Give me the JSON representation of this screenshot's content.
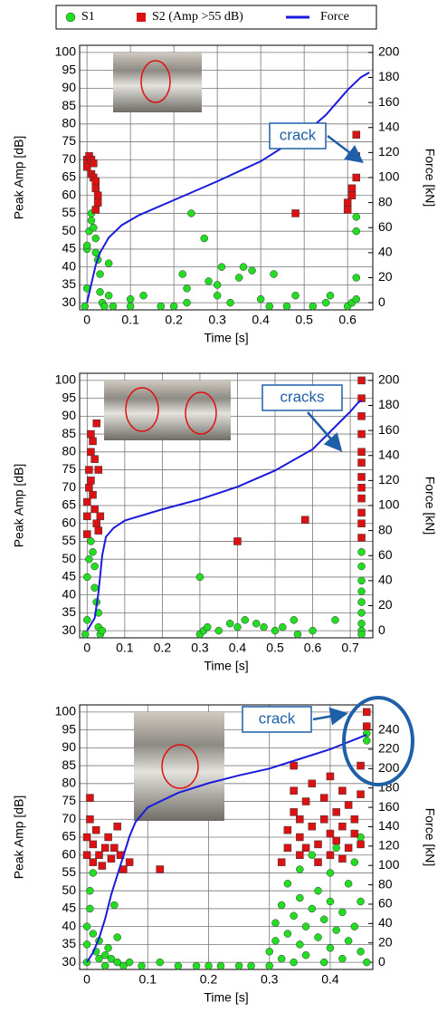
{
  "chart_data": [
    {
      "type": "scatter",
      "xlabel": "Time [s]",
      "ylabel": "Peak Amp [dB]",
      "y2label": "Force [kN]",
      "xlim": [
        -0.017,
        0.658
      ],
      "xticks": [
        0,
        0.1,
        0.2,
        0.3,
        0.4,
        0.5,
        0.6
      ],
      "ylim": [
        28,
        102
      ],
      "yticks": [
        30,
        35,
        40,
        45,
        50,
        55,
        60,
        65,
        70,
        75,
        80,
        85,
        90,
        95,
        100
      ],
      "y2lim": [
        -5.7,
        205.7
      ],
      "y2ticks": [
        0,
        20,
        40,
        60,
        80,
        100,
        120,
        140,
        160,
        180,
        200
      ],
      "grid": true,
      "legend": "top",
      "annotations": [
        {
          "text": "crack"
        }
      ],
      "series": [
        {
          "name": "S1",
          "color": "#22dd22",
          "marker": "circle",
          "x": [
            0,
            0,
            0,
            0.005,
            0.01,
            0.01,
            0.015,
            0.02,
            0.02,
            0.025,
            0.03,
            0.03,
            0.035,
            0.04,
            0.05,
            0.05,
            0.06,
            0.1,
            0.1,
            0.13,
            0.17,
            0.2,
            0.22,
            0.23,
            0.23,
            0.24,
            0.27,
            0.28,
            0.3,
            0.3,
            0.31,
            0.33,
            0.35,
            0.36,
            0.38,
            0.4,
            0.42,
            0.46,
            0.48,
            0.52,
            0.55,
            0.56,
            0.6,
            0.61,
            0.62,
            0.62,
            0.62,
            0.62,
            -0.005,
            0.43
          ],
          "values": [
            34,
            45,
            46,
            50,
            55,
            53,
            51,
            48,
            44,
            42,
            38,
            33,
            30,
            29,
            41,
            32,
            29,
            31,
            29,
            32,
            29,
            29,
            38,
            34,
            30,
            55,
            48,
            36,
            32,
            35,
            40,
            30,
            37,
            40,
            39,
            31,
            29,
            29,
            32,
            29,
            30,
            32,
            29,
            30,
            31,
            37,
            50,
            54,
            29,
            38
          ]
        },
        {
          "name": "S2 (Amp >55 dB)",
          "color": "#dd1111",
          "marker": "square",
          "x": [
            0,
            0,
            0.005,
            0.01,
            0.01,
            0.015,
            0.015,
            0.02,
            0.02,
            0.025,
            0.025,
            0.02,
            0.48,
            0.6,
            0.6,
            0.61,
            0.61,
            0.62,
            0.62,
            0.62
          ],
          "values": [
            68,
            70,
            71,
            66,
            70,
            69,
            65,
            62,
            64,
            60,
            58,
            56,
            55,
            56,
            58,
            60,
            62,
            65,
            71,
            77
          ]
        },
        {
          "name": "Force",
          "color": "#1a1adc",
          "marker": "line",
          "axis": "y2",
          "x": [
            0,
            0.01,
            0.02,
            0.03,
            0.05,
            0.08,
            0.12,
            0.2,
            0.3,
            0.4,
            0.5,
            0.55,
            0.6,
            0.63,
            0.65
          ],
          "values": [
            0,
            15,
            30,
            40,
            52,
            62,
            70,
            82,
            97,
            113,
            135,
            150,
            170,
            180,
            184
          ]
        }
      ]
    },
    {
      "type": "scatter",
      "xlabel": "Time [s]",
      "ylabel": "Peak Amp [dB]",
      "y2label": "Force [kN]",
      "xlim": [
        -0.02,
        0.76
      ],
      "xticks": [
        0,
        0.1,
        0.2,
        0.3,
        0.4,
        0.5,
        0.6,
        0.7
      ],
      "ylim": [
        28,
        102
      ],
      "yticks": [
        30,
        35,
        40,
        45,
        50,
        55,
        60,
        65,
        70,
        75,
        80,
        85,
        90,
        95,
        100
      ],
      "y2lim": [
        -5.7,
        205.7
      ],
      "y2ticks": [
        0,
        20,
        40,
        60,
        80,
        100,
        120,
        140,
        160,
        180,
        200
      ],
      "grid": true,
      "annotations": [
        {
          "text": "cracks"
        }
      ],
      "series": [
        {
          "name": "S1",
          "color": "#22dd22",
          "marker": "circle",
          "x": [
            0,
            0,
            0.005,
            0.01,
            0.015,
            0.02,
            0.02,
            0.025,
            0.03,
            0.03,
            0.035,
            0.04,
            0.3,
            0.3,
            0.31,
            0.32,
            0.35,
            0.38,
            0.4,
            0.42,
            0.45,
            0.47,
            0.5,
            0.52,
            0.55,
            0.56,
            0.6,
            0.66,
            0.73,
            0.73,
            0.73,
            0.73,
            0.73,
            0.73,
            0.73,
            0.73,
            0.73,
            -0.005
          ],
          "values": [
            33,
            45,
            50,
            55,
            52,
            48,
            42,
            38,
            35,
            31,
            29,
            30,
            45,
            29,
            30,
            31,
            30,
            32,
            31,
            33,
            32,
            31,
            30,
            31,
            33,
            29,
            30,
            33,
            30,
            32,
            35,
            38,
            41,
            44,
            48,
            52,
            29,
            29
          ]
        },
        {
          "name": "S2 (Amp >55 dB)",
          "color": "#dd1111",
          "marker": "square",
          "x": [
            0,
            0,
            0,
            0.005,
            0.005,
            0.01,
            0.01,
            0.01,
            0.015,
            0.015,
            0.02,
            0.02,
            0.025,
            0.025,
            0.03,
            0.03,
            0.035,
            0.4,
            0.58,
            0.73,
            0.73,
            0.73,
            0.73,
            0.73,
            0.73,
            0.73,
            0.73,
            0.73,
            0.73,
            0.73,
            0.73
          ],
          "values": [
            57,
            62,
            66,
            70,
            75,
            80,
            85,
            72,
            83,
            68,
            78,
            64,
            88,
            60,
            75,
            58,
            62,
            55,
            61,
            100,
            95,
            90,
            85,
            80,
            77,
            73,
            70,
            67,
            63,
            60,
            56
          ]
        },
        {
          "name": "Force",
          "color": "#1a1adc",
          "marker": "line",
          "axis": "y2",
          "x": [
            0,
            0.02,
            0.03,
            0.04,
            0.05,
            0.07,
            0.1,
            0.2,
            0.3,
            0.4,
            0.5,
            0.6,
            0.65,
            0.7,
            0.72,
            0.73
          ],
          "values": [
            0,
            10,
            30,
            60,
            75,
            82,
            88,
            97,
            105,
            115,
            128,
            145,
            160,
            175,
            182,
            184
          ]
        }
      ]
    },
    {
      "type": "scatter",
      "xlabel": "Time [s]",
      "ylabel": "Peak Amp [dB]",
      "y2label": "Force [kN]",
      "xlim": [
        -0.012,
        0.47
      ],
      "xticks": [
        0,
        0.1,
        0.2,
        0.3,
        0.4
      ],
      "ylim": [
        28,
        102
      ],
      "yticks": [
        30,
        35,
        40,
        45,
        50,
        55,
        60,
        65,
        70,
        75,
        80,
        85,
        90,
        95,
        100
      ],
      "y2lim": [
        -7.4,
        265.8
      ],
      "y2ticks": [
        0,
        20,
        40,
        60,
        80,
        100,
        120,
        140,
        160,
        180,
        200,
        220,
        240
      ],
      "grid": true,
      "annotations": [
        {
          "text": "crack"
        }
      ],
      "series": [
        {
          "name": "S1",
          "color": "#22dd22",
          "marker": "circle",
          "x": [
            0,
            0,
            0,
            0.005,
            0.005,
            0.01,
            0.01,
            0.015,
            0.02,
            0.02,
            0.03,
            0.03,
            0.035,
            0.04,
            0.045,
            0.05,
            0.05,
            0.06,
            0.07,
            0.09,
            0.12,
            0.15,
            0.18,
            0.2,
            0.22,
            0.25,
            0.27,
            0.3,
            0.3,
            0.31,
            0.31,
            0.32,
            0.32,
            0.33,
            0.33,
            0.34,
            0.34,
            0.35,
            0.35,
            0.35,
            0.36,
            0.36,
            0.37,
            0.37,
            0.38,
            0.38,
            0.39,
            0.39,
            0.4,
            0.4,
            0.4,
            0.41,
            0.41,
            0.42,
            0.42,
            0.43,
            0.43,
            0.44,
            0.44,
            0.45,
            0.45,
            0.45,
            0.46,
            0.46,
            0.46,
            0.46
          ],
          "values": [
            30,
            35,
            40,
            45,
            50,
            55,
            38,
            33,
            31,
            36,
            32,
            29,
            34,
            31,
            46,
            37,
            30,
            29,
            30,
            29,
            30,
            29,
            29,
            29,
            29,
            29,
            29,
            29,
            33,
            36,
            41,
            31,
            46,
            38,
            52,
            30,
            43,
            35,
            48,
            56,
            32,
            40,
            45,
            60,
            37,
            50,
            30,
            42,
            34,
            47,
            55,
            39,
            62,
            31,
            44,
            36,
            52,
            40,
            58,
            33,
            47,
            65,
            92,
            94,
            96,
            30
          ]
        },
        {
          "name": "S2 (Amp >55 dB)",
          "color": "#dd1111",
          "marker": "square",
          "x": [
            0,
            0,
            0.005,
            0.005,
            0.01,
            0.01,
            0.015,
            0.02,
            0.025,
            0.03,
            0.035,
            0.04,
            0.045,
            0.05,
            0.055,
            0.06,
            0.07,
            0.12,
            0.32,
            0.33,
            0.33,
            0.34,
            0.34,
            0.34,
            0.35,
            0.35,
            0.35,
            0.36,
            0.36,
            0.37,
            0.37,
            0.38,
            0.38,
            0.39,
            0.39,
            0.4,
            0.4,
            0.4,
            0.41,
            0.41,
            0.42,
            0.42,
            0.42,
            0.43,
            0.43,
            0.44,
            0.44,
            0.45,
            0.45,
            0.45,
            0.46,
            0.46
          ],
          "values": [
            60,
            65,
            70,
            76,
            58,
            63,
            67,
            60,
            57,
            62,
            65,
            59,
            62,
            68,
            60,
            56,
            58,
            56,
            58,
            62,
            67,
            72,
            78,
            85,
            60,
            65,
            70,
            75,
            62,
            68,
            80,
            58,
            63,
            70,
            76,
            60,
            66,
            82,
            64,
            72,
            59,
            68,
            78,
            62,
            74,
            66,
            70,
            63,
            77,
            85,
            100,
            96
          ]
        },
        {
          "name": "Force",
          "color": "#1a1adc",
          "marker": "line",
          "axis": "y2",
          "x": [
            0,
            0.01,
            0.02,
            0.03,
            0.04,
            0.05,
            0.06,
            0.07,
            0.08,
            0.1,
            0.15,
            0.2,
            0.25,
            0.3,
            0.35,
            0.4,
            0.44,
            0.46
          ],
          "values": [
            0,
            10,
            25,
            45,
            70,
            90,
            110,
            130,
            145,
            160,
            175,
            185,
            193,
            200,
            210,
            220,
            230,
            235
          ]
        }
      ]
    }
  ]
}
